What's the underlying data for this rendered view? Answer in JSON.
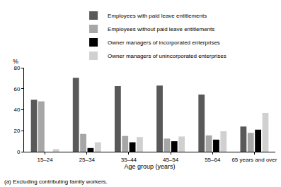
{
  "chart_data": {
    "type": "bar",
    "categories": [
      "15–24",
      "25–34",
      "35–44",
      "45–54",
      "55–64",
      "65 years and over"
    ],
    "series": [
      {
        "name": "Employees with paid leave entitlements",
        "color": "#595959",
        "values": [
          49.5,
          70.5,
          62.5,
          63,
          54.5,
          24
        ]
      },
      {
        "name": "Employees without paid leave entitlements",
        "color": "#a6a6a6",
        "values": [
          48,
          17,
          15,
          12.5,
          15.5,
          18
        ]
      },
      {
        "name": "Owner managers of incorporated enterprises",
        "color": "#000000",
        "values": [
          null,
          3.5,
          9,
          10,
          11.5,
          21
        ]
      },
      {
        "name": "Owner managers of unincorporated enterprises",
        "color": "#d0d0d0",
        "values": [
          2.5,
          9,
          14,
          14.5,
          19.5,
          37
        ]
      }
    ],
    "y_label": "%",
    "x_label": "Age group (years)",
    "note": "(a) Excluding contributing family workers.",
    "ylim": [
      0,
      80
    ],
    "yticks": [
      0,
      20,
      40,
      60,
      80
    ],
    "grid": false
  }
}
